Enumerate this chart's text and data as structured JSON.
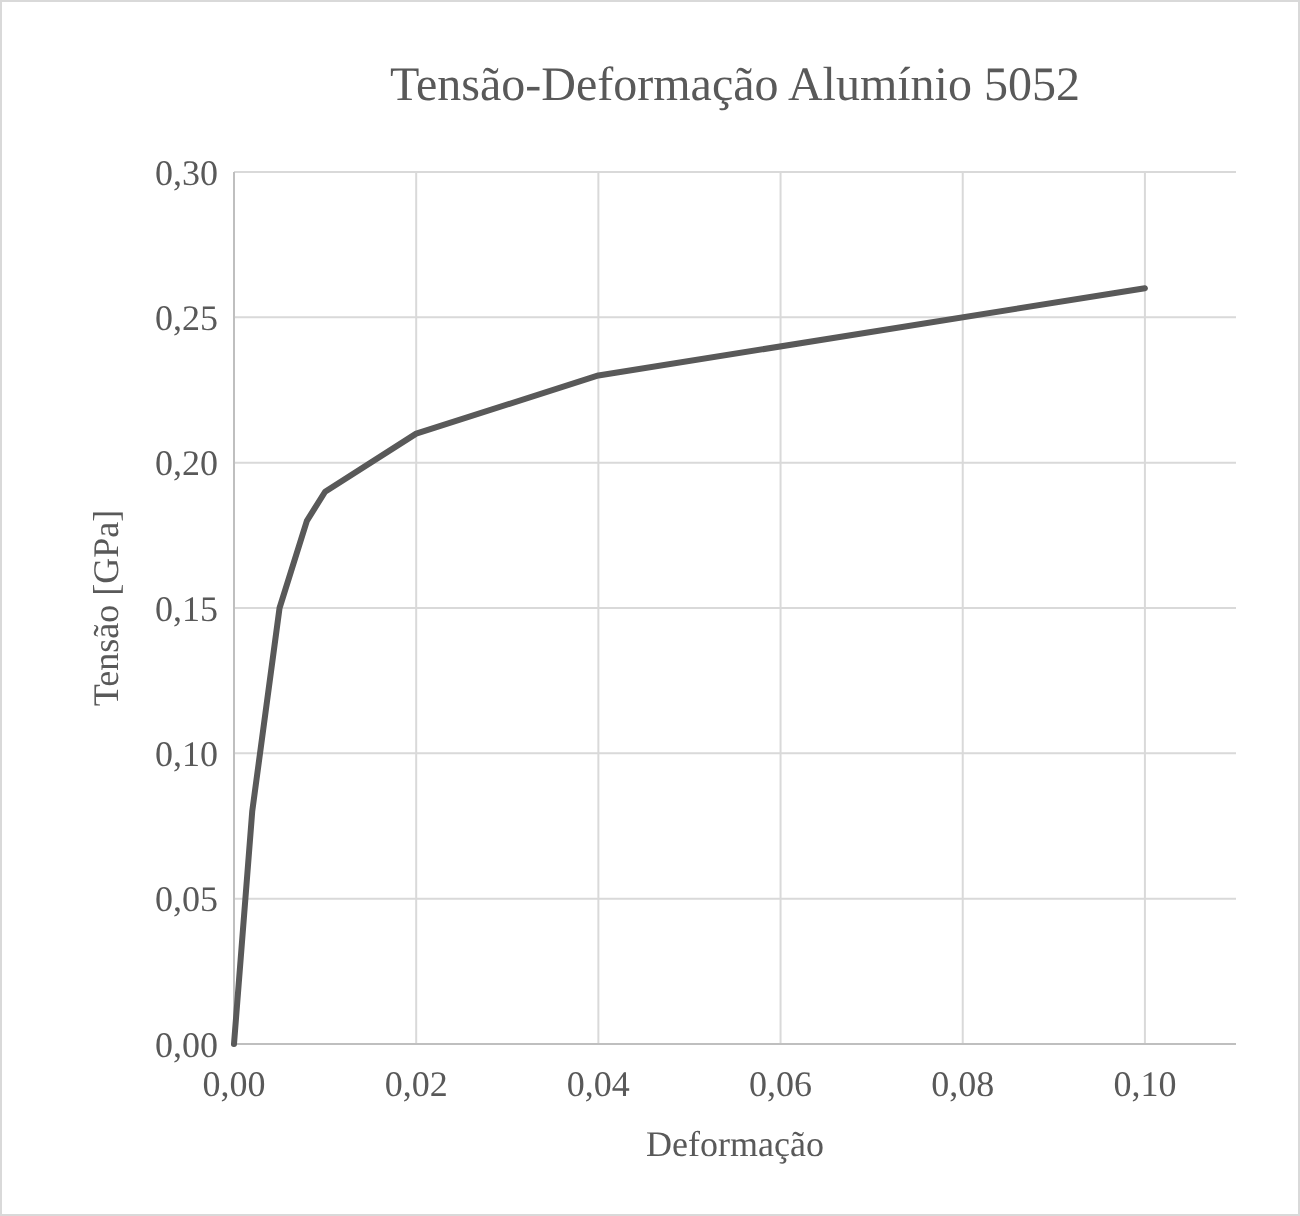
{
  "chart_data": {
    "type": "line",
    "title": "Tensão-Deformação Alumínio 5052",
    "xlabel": "Deformação",
    "ylabel": "Tensão [GPa]",
    "x": [
      0,
      0.002,
      0.005,
      0.008,
      0.01,
      0.02,
      0.04,
      0.1
    ],
    "series": [
      {
        "color": "#595959",
        "values": [
          0,
          0.08,
          0.15,
          0.18,
          0.19,
          0.21,
          0.23,
          0.26
        ]
      }
    ],
    "xlim": [
      0,
      0.11
    ],
    "ylim": [
      0,
      0.3
    ],
    "xticks": [
      {
        "value": 0,
        "label": "0,00"
      },
      {
        "value": 0.02,
        "label": "0,02"
      },
      {
        "value": 0.04,
        "label": "0,04"
      },
      {
        "value": 0.06,
        "label": "0,06"
      },
      {
        "value": 0.08,
        "label": "0,08"
      },
      {
        "value": 0.1,
        "label": "0,10"
      }
    ],
    "yticks": [
      {
        "value": 0,
        "label": "0,00"
      },
      {
        "value": 0.05,
        "label": "0,05"
      },
      {
        "value": 0.1,
        "label": "0,10"
      },
      {
        "value": 0.15,
        "label": "0,15"
      },
      {
        "value": 0.2,
        "label": "0,20"
      },
      {
        "value": 0.25,
        "label": "0,25"
      },
      {
        "value": 0.3,
        "label": "0,30"
      }
    ],
    "grid": true,
    "marker": "none",
    "line_style": "solid"
  }
}
